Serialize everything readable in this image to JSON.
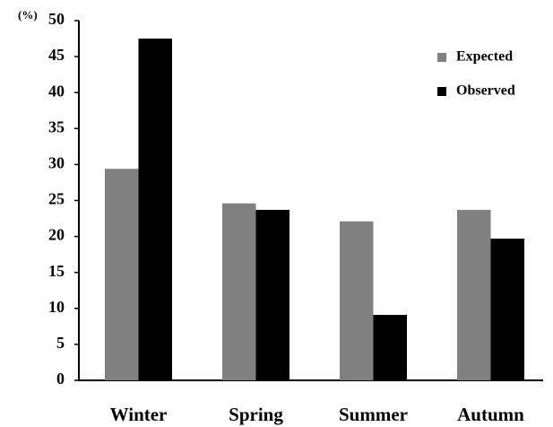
{
  "chart_data": {
    "type": "bar",
    "y_label": "(%)",
    "categories": [
      "Winter",
      "Spring",
      "Summer",
      "Autumn"
    ],
    "series": [
      {
        "name": "Expected",
        "color": "#808080",
        "values": [
          29.4,
          24.6,
          22.1,
          23.7
        ]
      },
      {
        "name": "Observed",
        "color": "#000000",
        "values": [
          47.5,
          23.7,
          9.1,
          19.7
        ]
      }
    ],
    "ylim": [
      0,
      50
    ],
    "yticks": [
      0,
      5,
      10,
      15,
      20,
      25,
      30,
      35,
      40,
      45,
      50
    ],
    "grid": false,
    "legend": "upper-right"
  }
}
